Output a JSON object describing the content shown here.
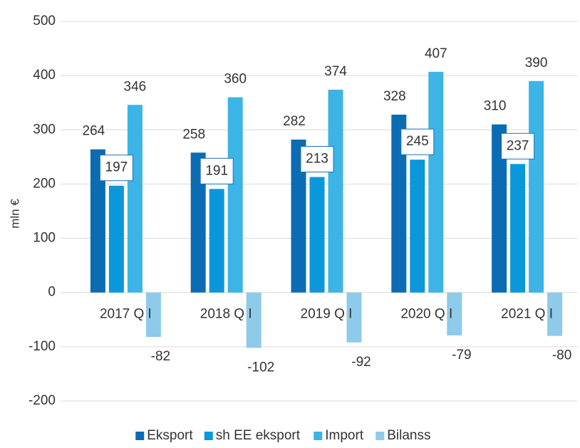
{
  "chart_data": {
    "type": "bar",
    "y_label": "mln €",
    "categories": [
      "2017 Q I",
      "2018 Q I",
      "2019 Q I",
      "2020 Q I",
      "2021 Q I"
    ],
    "series": [
      {
        "name": "Eksport",
        "color": "#0b6cb3",
        "values": [
          264,
          258,
          282,
          328,
          310
        ]
      },
      {
        "name": "sh EE eksport",
        "color": "#0a98db",
        "values": [
          197,
          191,
          213,
          245,
          237
        ]
      },
      {
        "name": "Import",
        "color": "#3cb4e5",
        "values": [
          346,
          360,
          374,
          407,
          390
        ]
      },
      {
        "name": "Bilanss",
        "color": "#8ecae9",
        "values": [
          -82,
          -102,
          -92,
          -79,
          -80
        ]
      }
    ],
    "ylim": [
      -200,
      500
    ],
    "yticks": [
      -200,
      -100,
      0,
      100,
      200,
      300,
      400,
      500
    ],
    "grid": true,
    "legend": "bottom"
  }
}
